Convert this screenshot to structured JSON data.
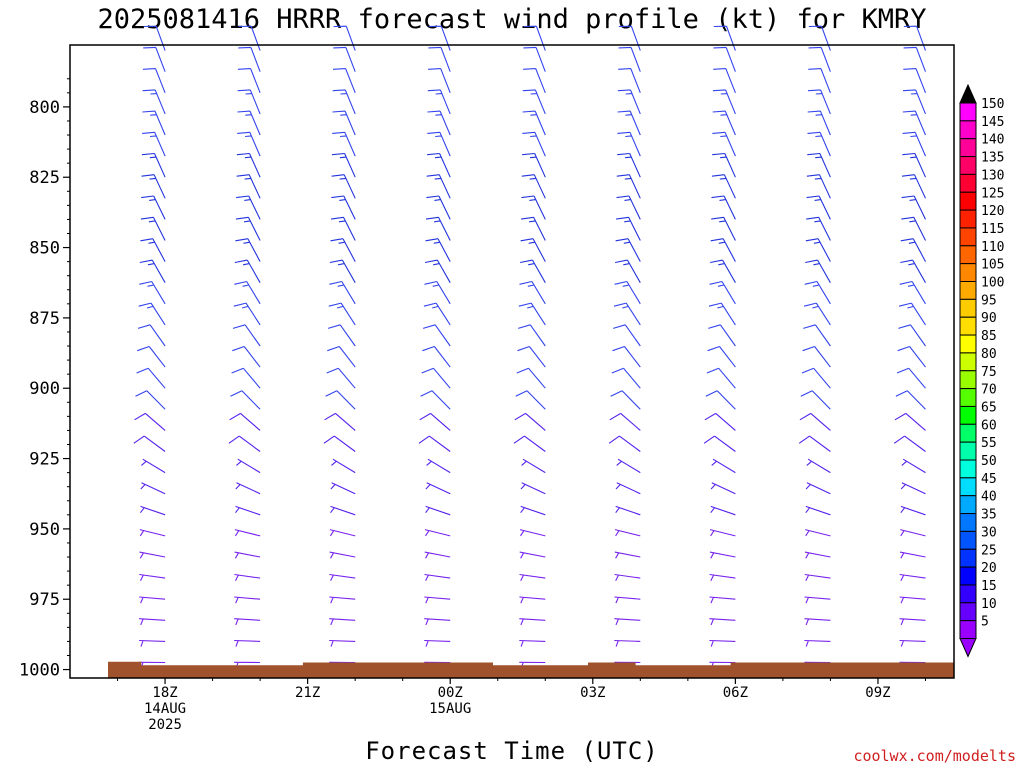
{
  "chart_data": {
    "type": "wind-barb-profile",
    "title": "2025081416 HRRR forecast wind profile (kt) for KMRY",
    "xlabel": "Forecast Time (UTC)",
    "credit": "coolwx.com/modelts",
    "y_axis": {
      "label": "",
      "inverted": true,
      "range": [
        778,
        1003
      ],
      "ticks": [
        800,
        825,
        850,
        875,
        900,
        925,
        950,
        975,
        1000
      ],
      "tick_labels": [
        "800",
        "825",
        "850",
        "875",
        "900",
        "925",
        "950",
        "975",
        "1000"
      ]
    },
    "x_axis": {
      "range_hours": [
        16,
        34.6
      ],
      "ticks": [
        {
          "hour": 18,
          "lines": [
            "18Z",
            "14AUG",
            "2025"
          ]
        },
        {
          "hour": 21,
          "lines": [
            "21Z"
          ]
        },
        {
          "hour": 24,
          "lines": [
            "00Z",
            "15AUG"
          ]
        },
        {
          "hour": 27,
          "lines": [
            "03Z"
          ]
        },
        {
          "hour": 30,
          "lines": [
            "06Z"
          ]
        },
        {
          "hour": 33,
          "lines": [
            "09Z"
          ]
        }
      ]
    },
    "barb_times_hours": [
      18,
      20,
      22,
      24,
      26,
      28,
      30,
      32,
      34
    ],
    "barb_levels_hpa": [
      780,
      787.5,
      795,
      802.5,
      810,
      817.5,
      825,
      832.5,
      840,
      847.5,
      855,
      862.5,
      870,
      877.5,
      885,
      892.5,
      900,
      907.5,
      915,
      922.5,
      930,
      937.5,
      945,
      952.5,
      960,
      967.5,
      975,
      982.5,
      990,
      997.5
    ],
    "barb_profile": [
      {
        "p": 780,
        "dir": 340,
        "spd": 14
      },
      {
        "p": 800,
        "dir": 338,
        "spd": 15
      },
      {
        "p": 825,
        "dir": 336,
        "spd": 17
      },
      {
        "p": 850,
        "dir": 333,
        "spd": 18
      },
      {
        "p": 875,
        "dir": 328,
        "spd": 16
      },
      {
        "p": 900,
        "dir": 320,
        "spd": 13
      },
      {
        "p": 925,
        "dir": 305,
        "spd": 10
      },
      {
        "p": 950,
        "dir": 285,
        "spd": 8
      },
      {
        "p": 975,
        "dir": 275,
        "spd": 6
      },
      {
        "p": 1000,
        "dir": 270,
        "spd": 5
      }
    ],
    "terrain": {
      "color": "#a0522d",
      "surface_pressure_hpa": [
        {
          "hour": 16.8,
          "p": 997.2
        },
        {
          "hour": 17.5,
          "p": 997.2
        },
        {
          "hour": 17.5,
          "p": 998.5
        },
        {
          "hour": 20.9,
          "p": 998.5
        },
        {
          "hour": 20.9,
          "p": 997.5
        },
        {
          "hour": 24.9,
          "p": 997.5
        },
        {
          "hour": 24.9,
          "p": 998.5
        },
        {
          "hour": 26.9,
          "p": 998.5
        },
        {
          "hour": 26.9,
          "p": 997.5
        },
        {
          "hour": 27.9,
          "p": 997.5
        },
        {
          "hour": 27.9,
          "p": 998.5
        },
        {
          "hour": 29.9,
          "p": 998.5
        },
        {
          "hour": 29.9,
          "p": 997.5
        },
        {
          "hour": 34.6,
          "p": 997.5
        }
      ]
    },
    "colorbar": {
      "labels": [
        "150",
        "145",
        "140",
        "135",
        "130",
        "125",
        "120",
        "115",
        "110",
        "105",
        "100",
        "95",
        "90",
        "85",
        "80",
        "75",
        "70",
        "65",
        "60",
        "55",
        "50",
        "45",
        "40",
        "35",
        "30",
        "25",
        "20",
        "15",
        "10",
        "5"
      ],
      "colors": [
        "#ff00ff",
        "#ff00cc",
        "#ff0099",
        "#ff0066",
        "#ff0033",
        "#ff0000",
        "#ff2200",
        "#ff4400",
        "#ff6600",
        "#ff8800",
        "#ffaa00",
        "#ffcc00",
        "#ffdd00",
        "#ffff00",
        "#ccff00",
        "#99ff00",
        "#55ff00",
        "#00ff00",
        "#00ff66",
        "#00ffaa",
        "#00ffdd",
        "#00ddff",
        "#00aaff",
        "#0077ff",
        "#0055ff",
        "#0033ff",
        "#0000ff",
        "#3300ff",
        "#6600ff",
        "#9900ff"
      ],
      "top_arrow_color": "#000000",
      "bottom_arrow_color": "#9900ff"
    }
  }
}
